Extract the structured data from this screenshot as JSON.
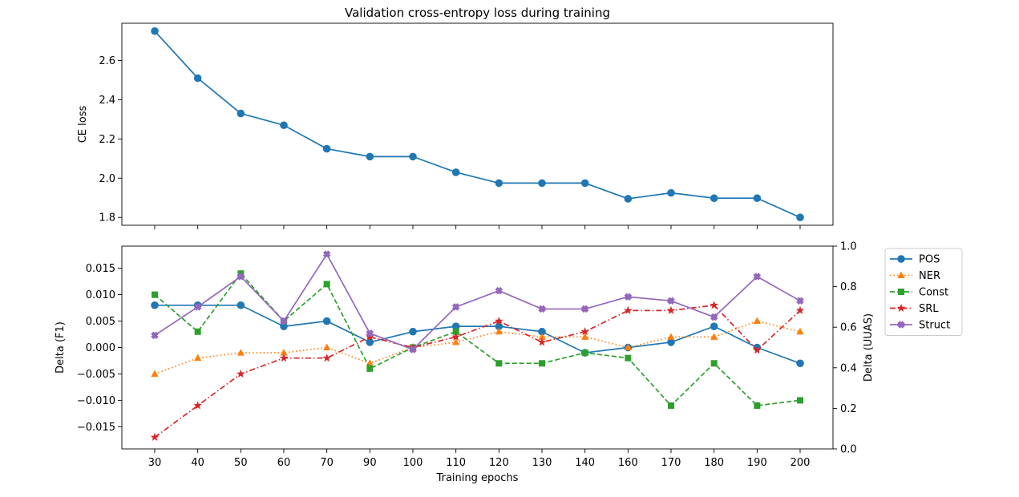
{
  "chart_data": [
    {
      "type": "line",
      "title": "Validation cross-entropy loss during training",
      "xlabel": "",
      "ylabel": "CE loss",
      "categories": [
        "30",
        "40",
        "50",
        "60",
        "70",
        "90",
        "100",
        "110",
        "120",
        "130",
        "140",
        "160",
        "170",
        "180",
        "190",
        "200"
      ],
      "yticks": [
        "1.8",
        "2.0",
        "2.2",
        "2.4",
        "2.6"
      ],
      "ylim": [
        1.76,
        2.79
      ],
      "grid": false,
      "series": [
        {
          "name": "CE loss",
          "color": "#1f77b4",
          "marker": "circle",
          "linestyle": "solid",
          "values": [
            2.75,
            2.51,
            2.33,
            2.27,
            2.15,
            2.11,
            2.11,
            2.03,
            1.975,
            1.975,
            1.975,
            1.895,
            1.925,
            1.898,
            1.898,
            1.8
          ]
        }
      ]
    },
    {
      "type": "line",
      "title": "",
      "xlabel": "Training epochs",
      "ylabel": "Delta (F1)",
      "ylabel_right": "Delta (UUAS)",
      "categories": [
        "30",
        "40",
        "50",
        "60",
        "70",
        "90",
        "100",
        "110",
        "120",
        "130",
        "140",
        "160",
        "170",
        "180",
        "190",
        "200"
      ],
      "yticks": [
        "−0.015",
        "−0.010",
        "−0.005",
        "0.000",
        "0.005",
        "0.010",
        "0.015"
      ],
      "yticks_right": [
        "0.0",
        "0.2",
        "0.4",
        "0.6",
        "0.8",
        "1.0"
      ],
      "ylim": [
        -0.0192,
        0.0192
      ],
      "ylim_right": [
        0.0,
        1.0
      ],
      "grid": false,
      "legend_position": "outside-right-top",
      "series": [
        {
          "name": "POS",
          "color": "#1f77b4",
          "marker": "circle",
          "linestyle": "solid",
          "axis": "left",
          "values": [
            0.008,
            0.008,
            0.008,
            0.004,
            0.005,
            0.001,
            0.003,
            0.004,
            0.004,
            0.003,
            -0.001,
            0.0,
            0.001,
            0.004,
            0.0,
            -0.003
          ]
        },
        {
          "name": "NER",
          "color": "#ff7f0e",
          "marker": "triangle",
          "linestyle": "dotted",
          "axis": "left",
          "values": [
            -0.005,
            -0.002,
            -0.001,
            -0.001,
            0.0,
            -0.003,
            0.0,
            0.001,
            0.003,
            0.002,
            0.002,
            0.0,
            0.002,
            0.002,
            0.005,
            0.003
          ]
        },
        {
          "name": "Const",
          "color": "#2ca02c",
          "marker": "square",
          "linestyle": "dashed",
          "axis": "left",
          "values": [
            0.01,
            0.003,
            0.014,
            0.005,
            0.012,
            -0.004,
            0.0,
            0.003,
            -0.003,
            -0.003,
            -0.001,
            -0.002,
            -0.011,
            -0.003,
            -0.011,
            -0.01
          ]
        },
        {
          "name": "SRL",
          "color": "#d62728",
          "marker": "star",
          "linestyle": "dashdot",
          "axis": "left",
          "values": [
            -0.017,
            -0.011,
            -0.005,
            -0.002,
            -0.002,
            0.002,
            0.0,
            0.002,
            0.005,
            0.001,
            0.003,
            0.007,
            0.007,
            0.008,
            -0.0005,
            0.007
          ]
        },
        {
          "name": "Struct",
          "color": "#9467bd",
          "marker": "x",
          "linestyle": "solid",
          "axis": "right",
          "values": [
            0.56,
            0.7,
            0.85,
            0.63,
            0.96,
            0.57,
            0.49,
            0.7,
            0.78,
            0.69,
            0.69,
            0.75,
            0.73,
            0.65,
            0.85,
            0.73
          ]
        }
      ]
    }
  ]
}
